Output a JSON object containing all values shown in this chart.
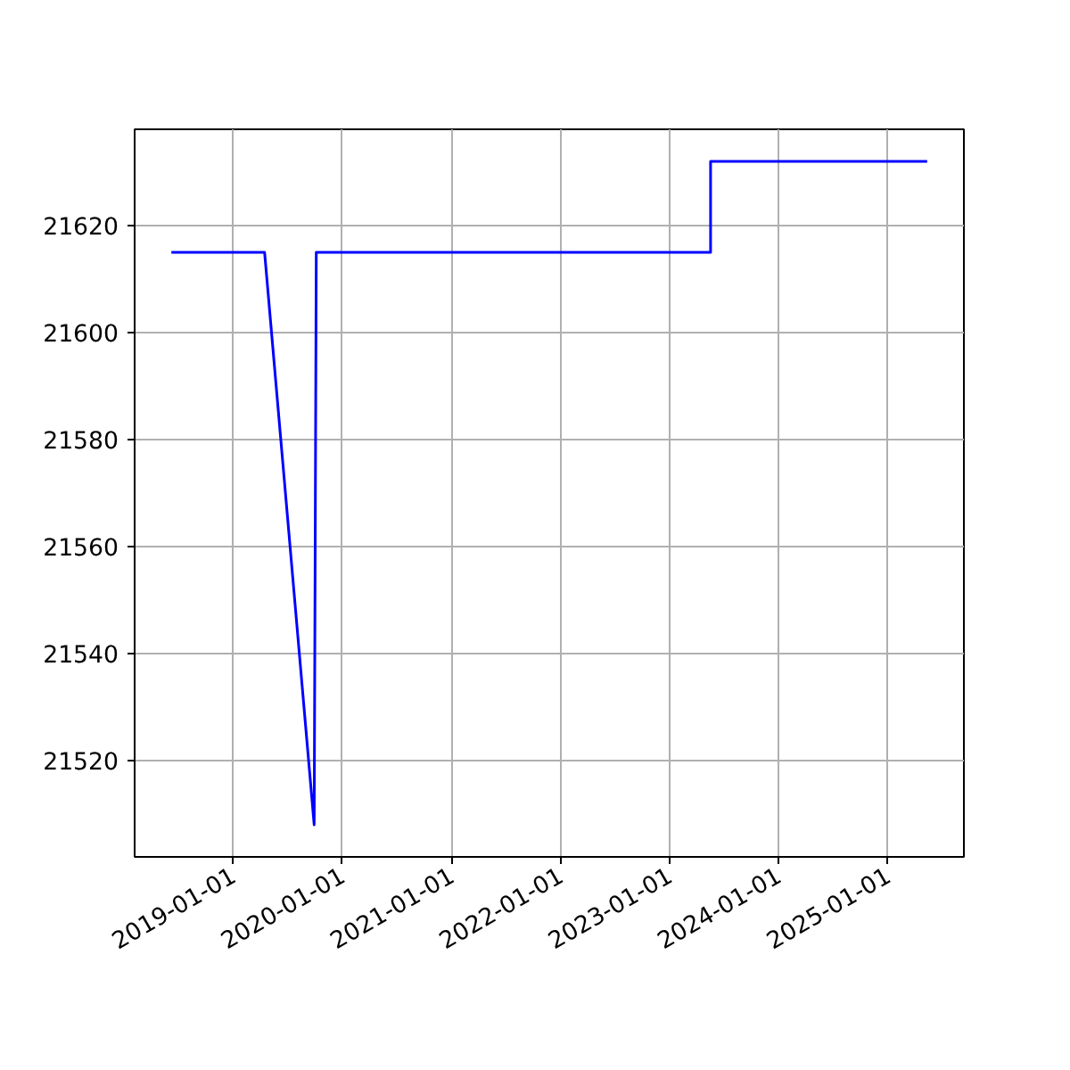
{
  "chart_data": {
    "type": "line",
    "x": [
      "2018-06-08",
      "2019-04-16",
      "2019-09-29",
      "2019-10-06",
      "2023-05-18",
      "2023-05-18",
      "2025-05-12"
    ],
    "series": [
      {
        "color": "#0000ff",
        "values": [
          21615,
          21615,
          21508,
          21615,
          21615,
          21632,
          21632
        ]
      }
    ],
    "xlim": [
      "2018-02-05",
      "2025-09-12"
    ],
    "xticks": [
      "2019-01-01",
      "2020-01-01",
      "2021-01-01",
      "2022-01-01",
      "2023-01-01",
      "2024-01-01",
      "2025-01-01"
    ],
    "ylim": [
      21502,
      21638
    ],
    "yticks": [
      21520,
      21540,
      21560,
      21580,
      21600,
      21620
    ],
    "grid": true,
    "marker": "none",
    "line_style": "solid"
  }
}
